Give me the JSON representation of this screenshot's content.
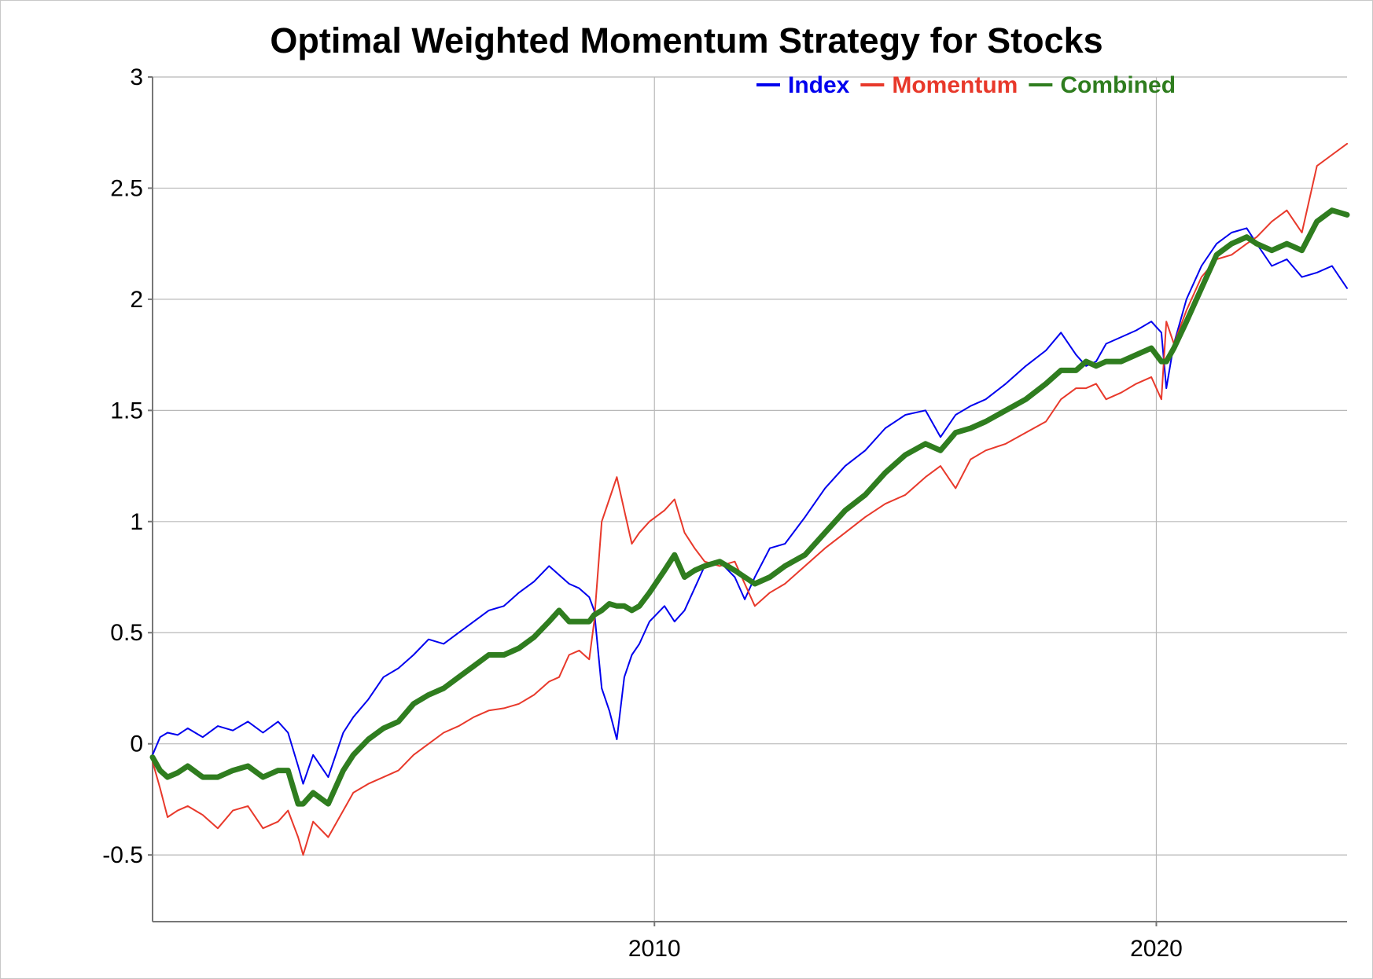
{
  "chart_data": {
    "type": "line",
    "title": "Optimal Weighted Momentum Strategy for Stocks",
    "xlabel": "",
    "ylabel": "",
    "xlim": [
      2000,
      2023.8
    ],
    "ylim": [
      -0.8,
      3
    ],
    "yticks": [
      -0.5,
      0,
      0.5,
      1,
      1.5,
      2,
      2.5,
      3
    ],
    "ytick_labels": [
      "-0.5",
      "0",
      "0.5",
      "1",
      "1.5",
      "2",
      "2.5",
      "3"
    ],
    "xticks": [
      2010,
      2020
    ],
    "xtick_labels": [
      "2010",
      "2020"
    ],
    "grid": true,
    "legend_position": "top-right",
    "series": [
      {
        "name": "Index",
        "color": "#0000ee",
        "width": 2,
        "x": [
          2000.0,
          2000.15,
          2000.3,
          2000.5,
          2000.7,
          2001.0,
          2001.3,
          2001.6,
          2001.9,
          2002.2,
          2002.5,
          2002.7,
          2002.9,
          2003.0,
          2003.2,
          2003.5,
          2003.8,
          2004.0,
          2004.3,
          2004.6,
          2004.9,
          2005.2,
          2005.5,
          2005.8,
          2006.1,
          2006.4,
          2006.7,
          2007.0,
          2007.3,
          2007.6,
          2007.9,
          2008.1,
          2008.3,
          2008.5,
          2008.7,
          2008.8,
          2008.95,
          2009.1,
          2009.25,
          2009.4,
          2009.55,
          2009.7,
          2009.9,
          2010.2,
          2010.4,
          2010.6,
          2010.8,
          2011.0,
          2011.3,
          2011.6,
          2011.8,
          2012.0,
          2012.3,
          2012.6,
          2013.0,
          2013.4,
          2013.8,
          2014.2,
          2014.6,
          2015.0,
          2015.4,
          2015.7,
          2016.0,
          2016.3,
          2016.6,
          2017.0,
          2017.4,
          2017.8,
          2018.1,
          2018.4,
          2018.6,
          2018.8,
          2019.0,
          2019.3,
          2019.6,
          2019.9,
          2020.1,
          2020.2,
          2020.35,
          2020.6,
          2020.9,
          2021.2,
          2021.5,
          2021.8,
          2022.0,
          2022.3,
          2022.6,
          2022.9,
          2023.2,
          2023.5,
          2023.8
        ],
        "values": [
          -0.05,
          0.03,
          0.05,
          0.04,
          0.07,
          0.03,
          0.08,
          0.06,
          0.1,
          0.05,
          0.1,
          0.05,
          -0.1,
          -0.18,
          -0.05,
          -0.15,
          0.05,
          0.12,
          0.2,
          0.3,
          0.34,
          0.4,
          0.47,
          0.45,
          0.5,
          0.55,
          0.6,
          0.62,
          0.68,
          0.73,
          0.8,
          0.76,
          0.72,
          0.7,
          0.66,
          0.6,
          0.25,
          0.15,
          0.02,
          0.3,
          0.4,
          0.45,
          0.55,
          0.62,
          0.55,
          0.6,
          0.7,
          0.8,
          0.82,
          0.75,
          0.65,
          0.75,
          0.88,
          0.9,
          1.02,
          1.15,
          1.25,
          1.32,
          1.42,
          1.48,
          1.5,
          1.38,
          1.48,
          1.52,
          1.55,
          1.62,
          1.7,
          1.77,
          1.85,
          1.75,
          1.7,
          1.72,
          1.8,
          1.83,
          1.86,
          1.9,
          1.85,
          1.6,
          1.8,
          2.0,
          2.15,
          2.25,
          2.3,
          2.32,
          2.25,
          2.15,
          2.18,
          2.1,
          2.12,
          2.15,
          2.05
        ]
      },
      {
        "name": "Momentum",
        "color": "#e8392b",
        "width": 2,
        "x": [
          2000.0,
          2000.15,
          2000.3,
          2000.5,
          2000.7,
          2001.0,
          2001.3,
          2001.6,
          2001.9,
          2002.2,
          2002.5,
          2002.7,
          2002.9,
          2003.0,
          2003.2,
          2003.5,
          2003.8,
          2004.0,
          2004.3,
          2004.6,
          2004.9,
          2005.2,
          2005.5,
          2005.8,
          2006.1,
          2006.4,
          2006.7,
          2007.0,
          2007.3,
          2007.6,
          2007.9,
          2008.1,
          2008.3,
          2008.5,
          2008.7,
          2008.8,
          2008.95,
          2009.1,
          2009.25,
          2009.4,
          2009.55,
          2009.7,
          2009.9,
          2010.2,
          2010.4,
          2010.6,
          2010.8,
          2011.0,
          2011.3,
          2011.6,
          2011.8,
          2012.0,
          2012.3,
          2012.6,
          2013.0,
          2013.4,
          2013.8,
          2014.2,
          2014.6,
          2015.0,
          2015.4,
          2015.7,
          2016.0,
          2016.3,
          2016.6,
          2017.0,
          2017.4,
          2017.8,
          2018.1,
          2018.4,
          2018.6,
          2018.8,
          2019.0,
          2019.3,
          2019.6,
          2019.9,
          2020.1,
          2020.2,
          2020.35,
          2020.6,
          2020.9,
          2021.2,
          2021.5,
          2021.8,
          2022.0,
          2022.3,
          2022.6,
          2022.9,
          2023.2,
          2023.5,
          2023.8
        ],
        "values": [
          -0.08,
          -0.2,
          -0.33,
          -0.3,
          -0.28,
          -0.32,
          -0.38,
          -0.3,
          -0.28,
          -0.38,
          -0.35,
          -0.3,
          -0.42,
          -0.5,
          -0.35,
          -0.42,
          -0.3,
          -0.22,
          -0.18,
          -0.15,
          -0.12,
          -0.05,
          0.0,
          0.05,
          0.08,
          0.12,
          0.15,
          0.16,
          0.18,
          0.22,
          0.28,
          0.3,
          0.4,
          0.42,
          0.38,
          0.55,
          1.0,
          1.1,
          1.2,
          1.05,
          0.9,
          0.95,
          1.0,
          1.05,
          1.1,
          0.95,
          0.88,
          0.82,
          0.8,
          0.82,
          0.72,
          0.62,
          0.68,
          0.72,
          0.8,
          0.88,
          0.95,
          1.02,
          1.08,
          1.12,
          1.2,
          1.25,
          1.15,
          1.28,
          1.32,
          1.35,
          1.4,
          1.45,
          1.55,
          1.6,
          1.6,
          1.62,
          1.55,
          1.58,
          1.62,
          1.65,
          1.55,
          1.9,
          1.8,
          1.95,
          2.1,
          2.18,
          2.2,
          2.25,
          2.28,
          2.35,
          2.4,
          2.3,
          2.6,
          2.65,
          2.7
        ]
      },
      {
        "name": "Combined",
        "color": "#2f7d1f",
        "width": 7,
        "x": [
          2000.0,
          2000.15,
          2000.3,
          2000.5,
          2000.7,
          2001.0,
          2001.3,
          2001.6,
          2001.9,
          2002.2,
          2002.5,
          2002.7,
          2002.9,
          2003.0,
          2003.2,
          2003.5,
          2003.8,
          2004.0,
          2004.3,
          2004.6,
          2004.9,
          2005.2,
          2005.5,
          2005.8,
          2006.1,
          2006.4,
          2006.7,
          2007.0,
          2007.3,
          2007.6,
          2007.9,
          2008.1,
          2008.3,
          2008.5,
          2008.7,
          2008.8,
          2008.95,
          2009.1,
          2009.25,
          2009.4,
          2009.55,
          2009.7,
          2009.9,
          2010.2,
          2010.4,
          2010.6,
          2010.8,
          2011.0,
          2011.3,
          2011.6,
          2011.8,
          2012.0,
          2012.3,
          2012.6,
          2013.0,
          2013.4,
          2013.8,
          2014.2,
          2014.6,
          2015.0,
          2015.4,
          2015.7,
          2016.0,
          2016.3,
          2016.6,
          2017.0,
          2017.4,
          2017.8,
          2018.1,
          2018.4,
          2018.6,
          2018.8,
          2019.0,
          2019.3,
          2019.6,
          2019.9,
          2020.1,
          2020.2,
          2020.35,
          2020.6,
          2020.9,
          2021.2,
          2021.5,
          2021.8,
          2022.0,
          2022.3,
          2022.6,
          2022.9,
          2023.2,
          2023.5,
          2023.8
        ],
        "values": [
          -0.06,
          -0.12,
          -0.15,
          -0.13,
          -0.1,
          -0.15,
          -0.15,
          -0.12,
          -0.1,
          -0.15,
          -0.12,
          -0.12,
          -0.27,
          -0.27,
          -0.22,
          -0.27,
          -0.12,
          -0.05,
          0.02,
          0.07,
          0.1,
          0.18,
          0.22,
          0.25,
          0.3,
          0.35,
          0.4,
          0.4,
          0.43,
          0.48,
          0.55,
          0.6,
          0.55,
          0.55,
          0.55,
          0.58,
          0.6,
          0.63,
          0.62,
          0.62,
          0.6,
          0.62,
          0.68,
          0.78,
          0.85,
          0.75,
          0.78,
          0.8,
          0.82,
          0.78,
          0.75,
          0.72,
          0.75,
          0.8,
          0.85,
          0.95,
          1.05,
          1.12,
          1.22,
          1.3,
          1.35,
          1.32,
          1.4,
          1.42,
          1.45,
          1.5,
          1.55,
          1.62,
          1.68,
          1.68,
          1.72,
          1.7,
          1.72,
          1.72,
          1.75,
          1.78,
          1.72,
          1.72,
          1.78,
          1.9,
          2.05,
          2.2,
          2.25,
          2.28,
          2.25,
          2.22,
          2.25,
          2.22,
          2.35,
          2.4,
          2.38
        ]
      }
    ]
  }
}
